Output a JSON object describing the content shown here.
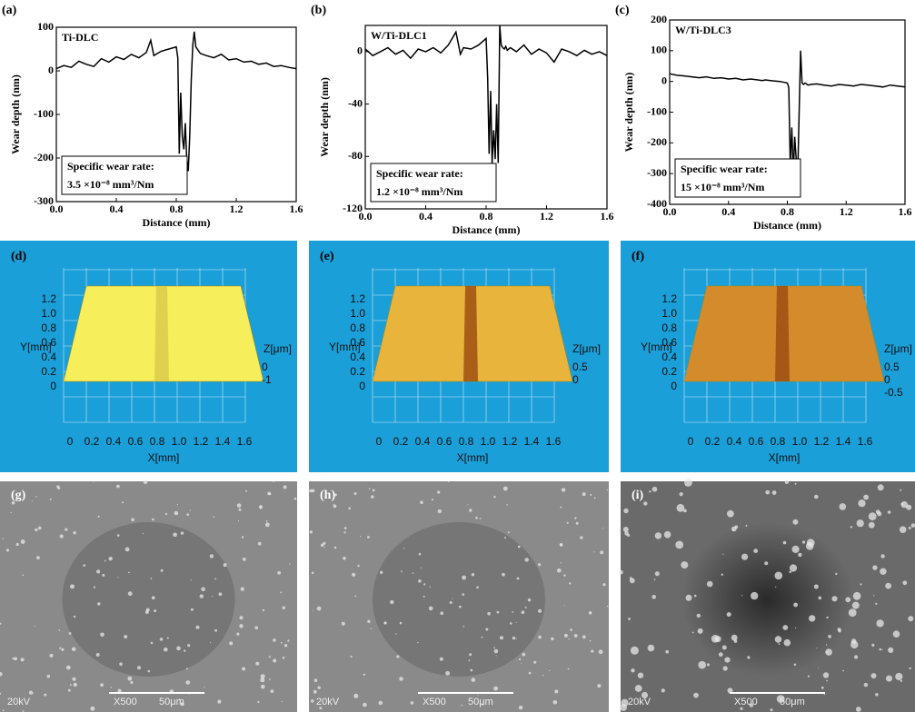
{
  "chart_data": [
    {
      "type": "line",
      "panel": "(a)",
      "ylabel": "Wear depth (nm)",
      "xlabel": "Distance (mm)",
      "annotation": [
        "Specific wear rate:",
        "3.5 ×10⁻⁸ mm³/Nm"
      ],
      "x": [
        0,
        0.05,
        0.1,
        0.15,
        0.2,
        0.25,
        0.3,
        0.35,
        0.4,
        0.45,
        0.5,
        0.55,
        0.6,
        0.63,
        0.65,
        0.7,
        0.75,
        0.8,
        0.81,
        0.82,
        0.83,
        0.84,
        0.85,
        0.86,
        0.87,
        0.88,
        0.89,
        0.9,
        0.91,
        0.92,
        0.93,
        0.94,
        0.96,
        1.0,
        1.05,
        1.1,
        1.15,
        1.2,
        1.25,
        1.3,
        1.35,
        1.4,
        1.45,
        1.5,
        1.55,
        1.6
      ],
      "series": [
        {
          "name": "Ti-DLC",
          "color": "#000000",
          "values": [
            5,
            12,
            8,
            22,
            15,
            10,
            28,
            20,
            32,
            26,
            38,
            30,
            42,
            70,
            35,
            45,
            50,
            55,
            30,
            -190,
            -50,
            -150,
            -180,
            -120,
            -200,
            -230,
            -150,
            -20,
            60,
            90,
            55,
            50,
            40,
            35,
            30,
            38,
            25,
            28,
            20,
            22,
            15,
            18,
            10,
            12,
            8,
            5
          ]
        }
      ],
      "xlim": [
        0,
        1.6
      ],
      "xticks": [
        {
          "value": 0,
          "label": "0.0"
        },
        0.4,
        0.8,
        1.2,
        1.6
      ],
      "ylim": [
        -300,
        100
      ],
      "yticks": [
        -300,
        -200,
        -100,
        0,
        100
      ]
    },
    {
      "type": "line",
      "panel": "(b)",
      "ylabel": "Wear depth (nm)",
      "xlabel": "Distance (mm)",
      "annotation": [
        "Specific wear rate:",
        "1.2 ×10⁻⁸ mm³/Nm"
      ],
      "x": [
        0,
        0.05,
        0.1,
        0.15,
        0.2,
        0.25,
        0.3,
        0.35,
        0.4,
        0.45,
        0.5,
        0.55,
        0.6,
        0.63,
        0.65,
        0.7,
        0.75,
        0.8,
        0.81,
        0.82,
        0.83,
        0.84,
        0.85,
        0.86,
        0.87,
        0.88,
        0.89,
        0.9,
        0.91,
        0.92,
        0.93,
        0.94,
        0.96,
        1.0,
        1.05,
        1.1,
        1.15,
        1.2,
        1.25,
        1.3,
        1.35,
        1.4,
        1.45,
        1.5,
        1.55,
        1.6
      ],
      "series": [
        {
          "name": "W/Ti-DLC1",
          "color": "#000000",
          "values": [
            2,
            -3,
            0,
            3,
            -2,
            1,
            -5,
            2,
            0,
            3,
            -1,
            5,
            15,
            -2,
            3,
            2,
            5,
            10,
            -20,
            -78,
            -30,
            -85,
            -60,
            -82,
            -40,
            -85,
            20,
            5,
            3,
            2,
            4,
            1,
            3,
            0,
            5,
            -2,
            2,
            -1,
            -8,
            2,
            0,
            -3,
            1,
            -2,
            0,
            -3
          ]
        }
      ],
      "xlim": [
        0,
        1.6
      ],
      "xticks": [
        {
          "value": 0,
          "label": "0.0"
        },
        0.4,
        0.8,
        1.2,
        1.6
      ],
      "ylim": [
        -120,
        20
      ],
      "yticks": [
        -120,
        -80,
        -40,
        0
      ]
    },
    {
      "type": "line",
      "panel": "(c)",
      "ylabel": "Wear depth (nm)",
      "xlabel": "Distance (mm)",
      "annotation": [
        "Specific wear rate:",
        "15 ×10⁻⁸ mm³/Nm"
      ],
      "x": [
        0,
        0.05,
        0.1,
        0.15,
        0.2,
        0.25,
        0.3,
        0.35,
        0.4,
        0.45,
        0.5,
        0.55,
        0.6,
        0.63,
        0.65,
        0.7,
        0.75,
        0.8,
        0.81,
        0.82,
        0.83,
        0.84,
        0.85,
        0.86,
        0.87,
        0.88,
        0.89,
        0.9,
        0.91,
        0.92,
        0.93,
        0.94,
        0.96,
        1.0,
        1.05,
        1.1,
        1.15,
        1.2,
        1.25,
        1.3,
        1.35,
        1.4,
        1.45,
        1.5,
        1.55,
        1.6
      ],
      "series": [
        {
          "name": "W/Ti-DLC3",
          "color": "#000000",
          "values": [
            25,
            20,
            18,
            15,
            12,
            15,
            10,
            12,
            8,
            10,
            5,
            8,
            5,
            3,
            5,
            2,
            0,
            -5,
            -20,
            -270,
            -150,
            -300,
            -180,
            -250,
            -320,
            -100,
            100,
            -5,
            -10,
            -5,
            -8,
            -12,
            -10,
            -8,
            -12,
            -15,
            -10,
            -12,
            -15,
            -10,
            -12,
            -15,
            -18,
            -12,
            -15,
            -18
          ]
        }
      ],
      "xlim": [
        0,
        1.6
      ],
      "xticks": [
        {
          "value": 0,
          "label": "0.0"
        },
        0.4,
        0.8,
        1.2,
        1.6
      ],
      "ylim": [
        -400,
        200
      ],
      "yticks": [
        -400,
        -300,
        -200,
        -100,
        0,
        100,
        200
      ]
    }
  ],
  "surfaces": [
    {
      "label": "(d)",
      "color": "#f7ee5c",
      "y_axis": "Y[mm]",
      "z_axis": "Z[μm]",
      "x_axis": "X[mm]",
      "y_ticks": [
        "1.2",
        "1.0",
        "0.8",
        "0.6",
        "0.4",
        "0.2",
        "0"
      ],
      "z_ticks": [
        "0",
        "-1"
      ],
      "x_ticks": [
        "0",
        "0.2",
        "0.4",
        "0.6",
        "0.8",
        "1.0",
        "1.2",
        "1.4",
        "1.6"
      ]
    },
    {
      "label": "(e)",
      "color": "#e9b43c",
      "y_axis": "Y[mm]",
      "z_axis": "Z[μm]",
      "x_axis": "X[mm]",
      "y_ticks": [
        "1.2",
        "1.0",
        "0.8",
        "0.6",
        "0.4",
        "0.2",
        "0"
      ],
      "z_ticks": [
        "0.5",
        "0"
      ],
      "x_ticks": [
        "0",
        "0.2",
        "0.4",
        "0.6",
        "0.8",
        "1.0",
        "1.2",
        "1.4",
        "1.6"
      ]
    },
    {
      "label": "(f)",
      "color": "#d48b2c",
      "y_axis": "Y[mm]",
      "z_axis": "Z[μm]",
      "x_axis": "X[mm]",
      "y_ticks": [
        "1.2",
        "1.0",
        "0.8",
        "0.6",
        "0.4",
        "0.2",
        "0"
      ],
      "z_ticks": [
        "0.5",
        "0",
        "-0.5"
      ],
      "x_ticks": [
        "0",
        "0.2",
        "0.4",
        "0.6",
        "0.8",
        "1.0",
        "1.2",
        "1.4",
        "1.6"
      ]
    }
  ],
  "micrographs": [
    {
      "label": "(g)",
      "voltage": "20kV",
      "magnification": "X500",
      "scale": "50μm"
    },
    {
      "label": "(h)",
      "voltage": "20kV",
      "magnification": "X500",
      "scale": "50μm"
    },
    {
      "label": "(i)",
      "voltage": "20kV",
      "magnification": "X500",
      "scale": "50μm"
    }
  ]
}
